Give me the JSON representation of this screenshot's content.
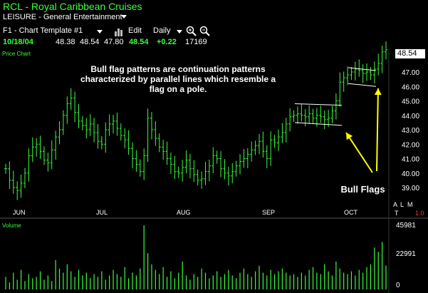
{
  "window": {
    "title": "RCL - Royal Caribbean Cruises",
    "sector": "LEISURE - General Entertainment"
  },
  "toolbar": {
    "template": "F1 - Chart Template #1",
    "edit_label": "Edit",
    "period": "Daily"
  },
  "quote": {
    "date": "10/18/04",
    "open": "48.38",
    "high": "48.54",
    "low": "47.80",
    "close": "48.54",
    "change": "+0.22",
    "volume": "17169"
  },
  "price_panel": {
    "label": "Price Chart",
    "last_price_badge": "48.54",
    "y_ticks": [
      "47.00",
      "46.00",
      "45.00",
      "44.00",
      "43.00",
      "42.00",
      "41.00",
      "40.00",
      "39.00"
    ],
    "months": [
      "JUN",
      "JUL",
      "AUG",
      "SEP",
      "OCT"
    ],
    "side_buttons": {
      "a": "A",
      "l": "L",
      "m": "M",
      "t": "T",
      "scale": "1.0"
    }
  },
  "annotations": {
    "main_note": "Bull flag patterns are continuation patterns characterized by parallel lines which resemble a flag on a pole.",
    "bull_flags": "Bull Flags"
  },
  "volume_panel": {
    "label": "Volume",
    "y_ticks": [
      "45981",
      "22991",
      "0"
    ]
  },
  "colors": {
    "background": "#000000",
    "price_bars": "#39ff39",
    "volume_bars": "#39ff39",
    "axis_text": "#ffffff",
    "badge_bg": "#ffffff",
    "arrows": "#ffff00",
    "flag_lines": "#ffffff",
    "scale_text": "#ff3333"
  },
  "chart_data": [
    {
      "type": "ohlc",
      "title": "RCL - Royal Caribbean Cruises",
      "y_ticks": [
        39,
        40,
        41,
        42,
        43,
        44,
        45,
        46,
        47
      ],
      "ylim": [
        38.2,
        48.2
      ],
      "x_tick_labels": [
        "JUN",
        "JUL",
        "AUG",
        "SEP",
        "OCT"
      ],
      "last_value": 48.54,
      "closes_approx": [
        40.3,
        39.5,
        39.0,
        38.8,
        39.3,
        40.0,
        41.2,
        41.8,
        42.0,
        41.5,
        40.9,
        40.7,
        41.6,
        42.5,
        43.0,
        44.0,
        44.8,
        45.2,
        44.2,
        43.6,
        43.3,
        43.0,
        43.4,
        42.8,
        42.2,
        42.0,
        43.0,
        43.4,
        43.6,
        43.1,
        42.6,
        42.3,
        41.7,
        41.0,
        40.6,
        40.1,
        41.2,
        43.8,
        43.0,
        42.4,
        41.8,
        41.5,
        41.0,
        40.6,
        40.1,
        40.0,
        40.4,
        40.9,
        40.3,
        39.9,
        39.5,
        39.6,
        40.1,
        40.5,
        41.2,
        41.0,
        40.3,
        40.0,
        39.8,
        40.1,
        40.5,
        40.8,
        41.0,
        41.3,
        41.6,
        41.9,
        42.2,
        41.5,
        41.0,
        42.3,
        42.1,
        42.5,
        42.8,
        43.4,
        43.9,
        44.0,
        44.1,
        44.0,
        43.9,
        44.1,
        43.8,
        44.0,
        43.9,
        43.7,
        43.8,
        44.3,
        45.0,
        46.3,
        46.6,
        46.8,
        47.0,
        47.2,
        47.1,
        46.9,
        47.0,
        46.8,
        47.2,
        47.6,
        48.4,
        48.54
      ],
      "bull_flags": [
        {
          "upper_line": [
            44.8,
            44.7
          ],
          "lower_line": [
            43.5,
            43.3
          ]
        },
        {
          "upper_line": [
            47.3,
            47.1
          ],
          "lower_line": [
            46.2,
            46.0
          ]
        }
      ]
    },
    {
      "type": "bar",
      "title": "Volume",
      "y_ticks": [
        0,
        22991,
        45981
      ],
      "ylim": [
        0,
        45981
      ],
      "values_approx": [
        9000,
        5000,
        12000,
        7000,
        14000,
        6000,
        11000,
        8000,
        9000,
        13000,
        7000,
        10000,
        6000,
        21000,
        15000,
        12000,
        18000,
        13000,
        9000,
        14000,
        10000,
        12000,
        8000,
        11000,
        9000,
        13000,
        7000,
        10000,
        14000,
        11000,
        9000,
        16000,
        8000,
        12000,
        10000,
        15000,
        45981,
        26000,
        18000,
        14000,
        11000,
        16000,
        9000,
        13000,
        8000,
        12000,
        20000,
        10000,
        7000,
        11000,
        9000,
        15000,
        12000,
        8000,
        10000,
        13000,
        9000,
        11000,
        14000,
        10000,
        8000,
        12000,
        15000,
        11000,
        9000,
        13000,
        17000,
        12000,
        10000,
        14000,
        11000,
        13000,
        15000,
        12000,
        10000,
        11000,
        9000,
        12000,
        10000,
        14000,
        16000,
        12000,
        11000,
        18000,
        13000,
        10000,
        20000,
        15000,
        12000,
        11000,
        13000,
        10000,
        14000,
        12000,
        16000,
        18000,
        30000,
        27000,
        34000,
        17169
      ]
    }
  ]
}
